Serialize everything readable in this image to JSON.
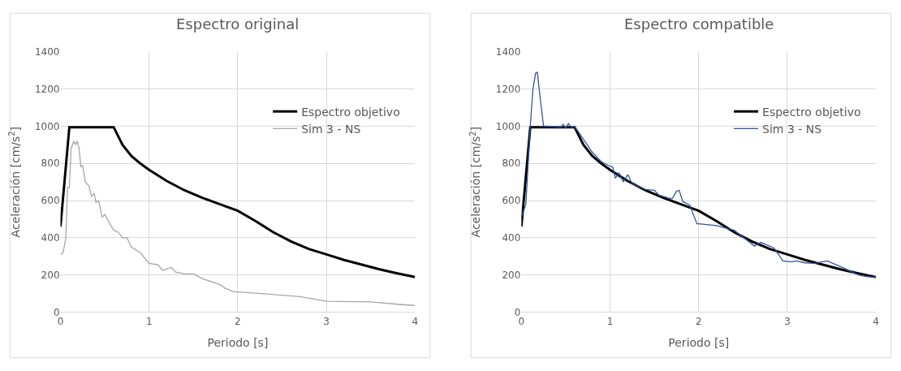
{
  "chart_data": [
    {
      "type": "line",
      "title": "Espectro original",
      "xlabel": "Periodo [s]",
      "ylabel": "Aceleración [cm/s$^{2}$]",
      "xlim": [
        0,
        4
      ],
      "xticks": [
        0,
        1,
        2,
        3,
        4
      ],
      "ylim": [
        0,
        1400
      ],
      "yticks": [
        0,
        200,
        400,
        600,
        800,
        1000,
        1200,
        1400
      ],
      "grid": true,
      "legend": "top right",
      "marker": "none",
      "line_style": "solid",
      "series": [
        {
          "name": "Espectro objetivo",
          "color": "#000000",
          "x": [
            0,
            0.1,
            0.6,
            0.7,
            0.8,
            0.9,
            1.0,
            1.2,
            1.4,
            1.6,
            1.8,
            2.0,
            2.2,
            2.4,
            2.6,
            2.8,
            3.0,
            3.2,
            3.4,
            3.6,
            3.8,
            4.0
          ],
          "values": [
            460,
            995,
            995,
            900,
            840,
            800,
            765,
            705,
            655,
            615,
            580,
            545,
            490,
            430,
            380,
            340,
            310,
            280,
            255,
            230,
            208,
            188
          ]
        },
        {
          "name": "Sim 3 - NS",
          "color": "#a6a6a6",
          "x": [
            0,
            0.03,
            0.06,
            0.08,
            0.1,
            0.12,
            0.15,
            0.17,
            0.19,
            0.21,
            0.23,
            0.25,
            0.28,
            0.32,
            0.35,
            0.38,
            0.4,
            0.43,
            0.47,
            0.5,
            0.55,
            0.6,
            0.65,
            0.7,
            0.75,
            0.8,
            0.9,
            0.95,
            1.0,
            1.1,
            1.15,
            1.25,
            1.3,
            1.4,
            1.5,
            1.6,
            1.8,
            1.85,
            1.95,
            2.0,
            2.3,
            2.7,
            3.0,
            3.5,
            3.8,
            4.0
          ],
          "values": [
            310,
            320,
            400,
            670,
            670,
            880,
            920,
            900,
            920,
            880,
            780,
            790,
            700,
            680,
            620,
            640,
            590,
            600,
            510,
            525,
            480,
            440,
            430,
            400,
            400,
            350,
            320,
            290,
            262,
            255,
            225,
            240,
            215,
            205,
            205,
            180,
            148,
            130,
            110,
            108,
            98,
            83,
            58,
            55,
            42,
            35
          ]
        }
      ]
    },
    {
      "type": "line",
      "title": "Espectro compatible",
      "xlabel": "Periodo [s]",
      "ylabel": "Aceleración [cm/s$^{2}$]",
      "xlim": [
        0,
        4
      ],
      "xticks": [
        0,
        1,
        2,
        3,
        4
      ],
      "ylim": [
        0,
        1400
      ],
      "yticks": [
        0,
        200,
        400,
        600,
        800,
        1000,
        1200,
        1400
      ],
      "grid": true,
      "legend": "top right",
      "marker": "none",
      "line_style": "solid",
      "series": [
        {
          "name": "Espectro objetivo",
          "color": "#000000",
          "x": [
            0,
            0.1,
            0.6,
            0.7,
            0.8,
            0.9,
            1.0,
            1.2,
            1.4,
            1.6,
            1.8,
            2.0,
            2.2,
            2.4,
            2.6,
            2.8,
            3.0,
            3.2,
            3.4,
            3.6,
            3.8,
            4.0
          ],
          "values": [
            460,
            995,
            995,
            900,
            840,
            800,
            765,
            705,
            655,
            615,
            580,
            545,
            490,
            430,
            380,
            340,
            310,
            280,
            255,
            230,
            208,
            188
          ]
        },
        {
          "name": "Sim 3 - NS",
          "color": "#2f55a4",
          "x": [
            0,
            0.05,
            0.1,
            0.13,
            0.16,
            0.18,
            0.2,
            0.25,
            0.3,
            0.45,
            0.47,
            0.5,
            0.53,
            0.56,
            0.6,
            0.7,
            0.8,
            0.9,
            1.0,
            1.03,
            1.06,
            1.1,
            1.15,
            1.2,
            1.25,
            1.3,
            1.4,
            1.5,
            1.55,
            1.65,
            1.7,
            1.75,
            1.78,
            1.82,
            1.9,
            1.98,
            2.0,
            2.2,
            2.4,
            2.63,
            2.7,
            2.85,
            2.95,
            3.05,
            3.1,
            3.2,
            3.3,
            3.45,
            3.6,
            3.8,
            3.9,
            4.0
          ],
          "values": [
            510,
            580,
            1000,
            1200,
            1285,
            1290,
            1200,
            1000,
            1000,
            995,
            1010,
            990,
            1015,
            995,
            1000,
            930,
            860,
            810,
            785,
            780,
            720,
            750,
            700,
            740,
            690,
            680,
            660,
            655,
            630,
            615,
            610,
            650,
            655,
            595,
            575,
            475,
            475,
            465,
            440,
            355,
            375,
            345,
            275,
            270,
            275,
            265,
            262,
            275,
            245,
            200,
            190,
            188
          ]
        }
      ]
    }
  ]
}
